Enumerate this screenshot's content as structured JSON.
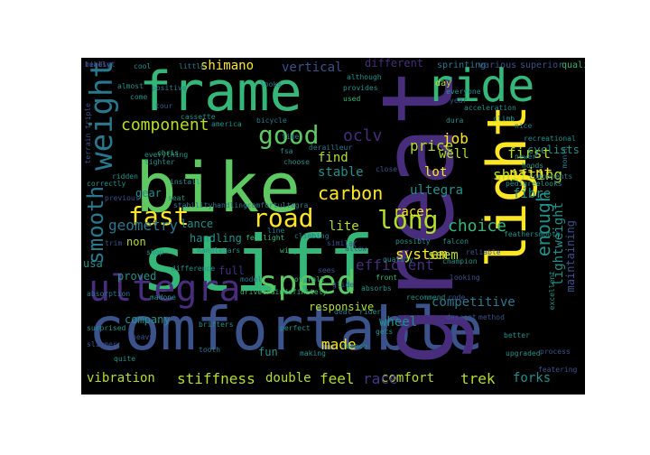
{
  "palette": {
    "background": "#000000",
    "yellow": "#fde725",
    "lime": "#b5de2b",
    "green": "#5ec962",
    "teal_green": "#35b779",
    "teal": "#21918c",
    "cyan_blue": "#2a788e",
    "blue": "#3b528b",
    "indigo": "#443983",
    "purple": "#472d7b",
    "deep_purple": "#440154"
  },
  "words": [
    {
      "text": "bike",
      "color": "#5ec962"
    },
    {
      "text": "comfortable",
      "color": "#3b528b"
    },
    {
      "text": "stiff",
      "color": "#35b779"
    },
    {
      "text": "frame",
      "color": "#35b779"
    },
    {
      "text": "great",
      "color": "#472d7b"
    },
    {
      "text": "light",
      "color": "#fde725"
    },
    {
      "text": "ride",
      "color": "#35b779"
    },
    {
      "text": "ultegra",
      "color": "#472d7b"
    },
    {
      "text": "speed",
      "color": "#5ec962"
    },
    {
      "text": "fast",
      "color": "#fde725"
    },
    {
      "text": "road",
      "color": "#fde725"
    },
    {
      "text": "good",
      "color": "#5ec962"
    },
    {
      "text": "weight",
      "color": "#2a788e"
    },
    {
      "text": "long",
      "color": "#b5de2b"
    },
    {
      "text": "smooth",
      "color": "#2a788e"
    },
    {
      "text": "enough",
      "color": "#21918c"
    },
    {
      "text": "component",
      "color": "#b5de2b"
    },
    {
      "text": "carbon",
      "color": "#fde725"
    },
    {
      "text": "shifting",
      "color": "#b5de2b"
    },
    {
      "text": "stiffness",
      "color": "#b5de2b"
    },
    {
      "text": "lightweight",
      "color": "#21918c"
    },
    {
      "text": "vibration",
      "color": "#b5de2b"
    },
    {
      "text": "comfort",
      "color": "#b5de2b"
    },
    {
      "text": "trek",
      "color": "#b5de2b"
    },
    {
      "text": "oclv",
      "color": "#472d7b"
    },
    {
      "text": "system",
      "color": "#fde725"
    },
    {
      "text": "ultegra",
      "color": "#21918c"
    },
    {
      "text": "choice",
      "color": "#35b779"
    },
    {
      "text": "efficient",
      "color": "#472d7b"
    },
    {
      "text": "made",
      "color": "#fde725"
    },
    {
      "text": "feel",
      "color": "#b5de2b"
    },
    {
      "text": "race",
      "color": "#443983"
    },
    {
      "text": "double",
      "color": "#b5de2b"
    },
    {
      "text": "forks",
      "color": "#21918c"
    },
    {
      "text": "wheel",
      "color": "#21918c"
    },
    {
      "text": "geometry",
      "color": "#2a788e"
    },
    {
      "text": "shimano",
      "color": "#fde725"
    },
    {
      "text": "price",
      "color": "#b5de2b"
    },
    {
      "text": "first",
      "color": "#b5de2b"
    },
    {
      "text": "paint",
      "color": "#fde725"
    },
    {
      "text": "fibre",
      "color": "#21918c"
    },
    {
      "text": "racer",
      "color": "#fde725"
    },
    {
      "text": "lot",
      "color": "#fde725"
    },
    {
      "text": "job",
      "color": "#fde725"
    },
    {
      "text": "well",
      "color": "#b5de2b"
    },
    {
      "text": "find",
      "color": "#b5de2b"
    },
    {
      "text": "stable",
      "color": "#21918c"
    },
    {
      "text": "lite",
      "color": "#b5de2b"
    },
    {
      "text": "seem",
      "color": "#b5de2b"
    },
    {
      "text": "competitive",
      "color": "#2a788e"
    },
    {
      "text": "responsive",
      "color": "#b5de2b"
    },
    {
      "text": "vertical",
      "color": "#3b528b"
    },
    {
      "text": "different",
      "color": "#472d7b"
    },
    {
      "text": "gear",
      "color": "#21918c"
    },
    {
      "text": "lance",
      "color": "#21918c"
    },
    {
      "text": "handling",
      "color": "#21918c"
    },
    {
      "text": "non",
      "color": "#b5de2b"
    },
    {
      "text": "usa",
      "color": "#21918c"
    },
    {
      "text": "proved",
      "color": "#21918c"
    },
    {
      "text": "full",
      "color": "#472d7b"
    },
    {
      "text": "company",
      "color": "#21918c"
    },
    {
      "text": "fun",
      "color": "#21918c"
    },
    {
      "text": "maintaining",
      "color": "#3b528b"
    },
    {
      "text": "cyclists",
      "color": "#21918c"
    },
    {
      "text": "day",
      "color": "#b5de2b"
    },
    {
      "text": "sprinting",
      "color": "#2a788e"
    },
    {
      "text": "various",
      "color": "#3b528b"
    },
    {
      "text": "superior",
      "color": "#3b528b"
    },
    {
      "text": "qualityfast",
      "color": "#35b779"
    },
    {
      "text": "cool",
      "color": "#21918c"
    },
    {
      "text": "little",
      "color": "#2a788e"
    },
    {
      "text": "although",
      "color": "#21918c"
    },
    {
      "text": "provides",
      "color": "#21918c"
    },
    {
      "text": "positive",
      "color": "#2a788e"
    },
    {
      "text": "come",
      "color": "#21918c"
    },
    {
      "text": "used",
      "color": "#35b779"
    },
    {
      "text": "everyone",
      "color": "#21918c"
    },
    {
      "text": "acceleration",
      "color": "#21918c"
    },
    {
      "text": "cassette",
      "color": "#21918c"
    },
    {
      "text": "climb",
      "color": "#21918c"
    },
    {
      "text": "nice",
      "color": "#2a788e"
    },
    {
      "text": "chris",
      "color": "#35b779"
    },
    {
      "text": "america",
      "color": "#21918c"
    },
    {
      "text": "bicycle",
      "color": "#2a788e"
    },
    {
      "text": "fsa",
      "color": "#21918c"
    },
    {
      "text": "time",
      "color": "#2a788e"
    },
    {
      "text": "derailleur",
      "color": "#2a788e"
    },
    {
      "text": "choose",
      "color": "#21918c"
    },
    {
      "text": "install",
      "color": "#21918c"
    },
    {
      "text": "ridden",
      "color": "#21918c"
    },
    {
      "text": "previous",
      "color": "#3b528b"
    },
    {
      "text": "seat",
      "color": "#21918c"
    },
    {
      "text": "stabilityhandlingcomfortultegra",
      "color": "#2a788e"
    },
    {
      "text": "feellight",
      "color": "#35b779"
    },
    {
      "text": "handlebars",
      "color": "#21918c"
    },
    {
      "text": "shop",
      "color": "#21918c"
    },
    {
      "text": "trim",
      "color": "#3b528b"
    },
    {
      "text": "line",
      "color": "#2a788e"
    },
    {
      "text": "wings",
      "color": "#35b779"
    },
    {
      "text": "climbing",
      "color": "#2a788e"
    },
    {
      "text": "similar",
      "color": "#3b528b"
    },
    {
      "text": "allow",
      "color": "#3b528b"
    },
    {
      "text": "falcon",
      "color": "#21918c"
    },
    {
      "text": "champion",
      "color": "#21918c"
    },
    {
      "text": "difference",
      "color": "#21918c"
    },
    {
      "text": "drivetraindefinitely",
      "color": "#35b779"
    },
    {
      "text": "overall",
      "color": "#35b779"
    },
    {
      "text": "model",
      "color": "#2a788e"
    },
    {
      "text": "madone",
      "color": "#21918c"
    },
    {
      "text": "absorbs",
      "color": "#21918c"
    },
    {
      "text": "rode",
      "color": "#3b528b"
    },
    {
      "text": "recommend",
      "color": "#21918c"
    },
    {
      "text": "deal",
      "color": "#2a788e"
    },
    {
      "text": "rider",
      "color": "#21918c"
    },
    {
      "text": "perfect",
      "color": "#21918c"
    },
    {
      "text": "brifters",
      "color": "#21918c"
    },
    {
      "text": "heavy",
      "color": "#3b528b"
    },
    {
      "text": "absorption",
      "color": "#2a788e"
    },
    {
      "text": "surprised",
      "color": "#21918c"
    },
    {
      "text": "slimmer",
      "color": "#3b528b"
    },
    {
      "text": "quite",
      "color": "#21918c"
    },
    {
      "text": "tooth",
      "color": "#2a788e"
    },
    {
      "text": "making",
      "color": "#21918c"
    },
    {
      "text": "gets",
      "color": "#21918c"
    },
    {
      "text": "durace",
      "color": "#21918c"
    },
    {
      "text": "upgraded",
      "color": "#21918c"
    },
    {
      "text": "process",
      "color": "#3b528b"
    },
    {
      "text": "featering",
      "color": "#3b528b"
    },
    {
      "text": "better",
      "color": "#21918c"
    },
    {
      "text": "excellent",
      "color": "#21918c"
    },
    {
      "text": "method",
      "color": "#3b528b"
    },
    {
      "text": "possibly",
      "color": "#21918c"
    },
    {
      "text": "close",
      "color": "#3b528b"
    },
    {
      "text": "quality",
      "color": "#21918c"
    },
    {
      "text": "front",
      "color": "#35b779"
    },
    {
      "text": "reliable",
      "color": "#3b528b"
    },
    {
      "text": "looking",
      "color": "#3b528b"
    },
    {
      "text": "feathersmooth",
      "color": "#21918c"
    },
    {
      "text": "newer",
      "color": "#21918c"
    },
    {
      "text": "pedigreelooks",
      "color": "#21918c"
    },
    {
      "text": "components",
      "color": "#2a788e"
    },
    {
      "text": "recreational",
      "color": "#21918c"
    },
    {
      "text": "month",
      "color": "#2a788e"
    },
    {
      "text": "descent",
      "color": "#3b528b"
    },
    {
      "text": "dura",
      "color": "#21918c"
    },
    {
      "text": "glide",
      "color": "#3b528b"
    },
    {
      "text": "everything",
      "color": "#21918c"
    },
    {
      "text": "tighter",
      "color": "#21918c"
    },
    {
      "text": "correctly",
      "color": "#21918c"
    },
    {
      "text": "hoods",
      "color": "#21918c"
    },
    {
      "text": "year",
      "color": "#3b528b"
    },
    {
      "text": "terrain triple",
      "color": "#3b528b"
    },
    {
      "text": "almost",
      "color": "#21918c"
    },
    {
      "text": "tour",
      "color": "#3b528b"
    },
    {
      "text": "sees",
      "color": "#3b528b"
    },
    {
      "text": "looks",
      "color": "#2a788e"
    },
    {
      "text": "likely",
      "color": "#3b528b"
    },
    {
      "text": "really",
      "color": "#3b528b"
    },
    {
      "text": "headset",
      "color": "#3b528b"
    }
  ]
}
